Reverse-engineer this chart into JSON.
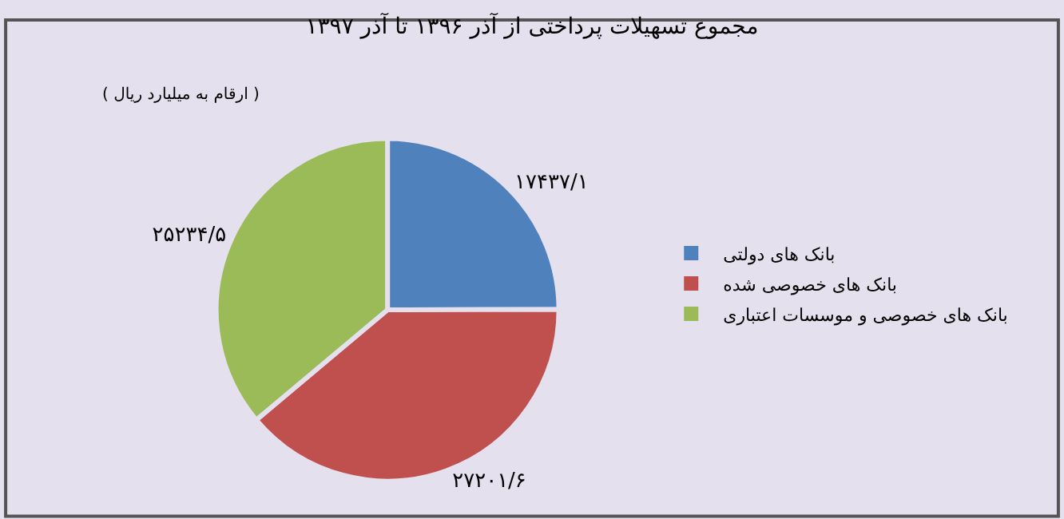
{
  "chart_data": {
    "type": "pie",
    "title": "مجموع تسهیلات پرداختی از آذر ۱۳۹۶ تا آذر ۱۳۹۷",
    "annotations": [
      "( ارقام به میلیارد ریال )"
    ],
    "categories": [
      "بانک های دولتی",
      "بانک های خصوصی شده",
      "بانک های خصوصی و موسسات اعتباری"
    ],
    "values": [
      17437.1,
      27201.6,
      25234.5
    ],
    "value_labels": [
      "۱۷۴۳۷/۱",
      "۲۷۲۰۱/۶",
      "۲۵۲۳۴/۵"
    ],
    "colors": [
      "#4f81bd",
      "#c0504d",
      "#9bbb59"
    ],
    "legend": "right"
  }
}
